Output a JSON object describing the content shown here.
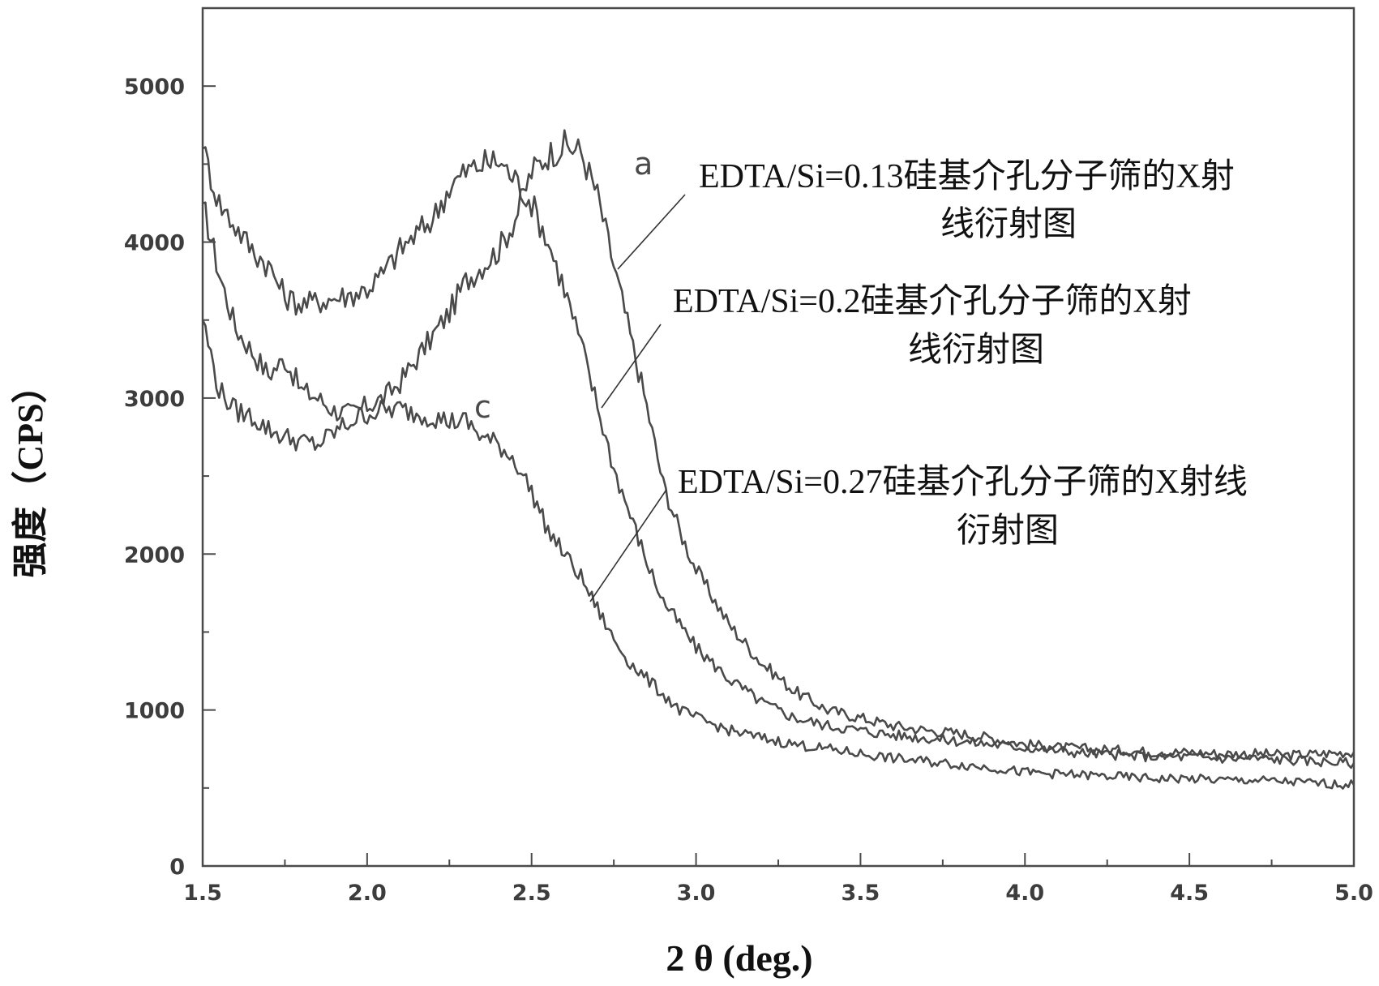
{
  "chart_data": {
    "type": "line",
    "title": "",
    "xlabel": "2 θ (deg.)",
    "ylabel": "强度（CPS）",
    "xlim": [
      1.5,
      5.0
    ],
    "ylim": [
      0,
      5500
    ],
    "x_ticks": [
      "1.5",
      "2.0",
      "2.5",
      "3.0",
      "3.5",
      "4.0",
      "4.5",
      "5.0"
    ],
    "y_ticks": [
      "0",
      "1000",
      "2000",
      "3000",
      "4000",
      "5000"
    ],
    "grid": false,
    "line_color": "#4a4a4a",
    "series": [
      {
        "label": "a",
        "x": [
          1.5,
          1.55,
          1.6,
          1.65,
          1.7,
          1.75,
          1.8,
          1.85,
          1.9,
          1.95,
          2.0,
          2.05,
          2.1,
          2.15,
          2.2,
          2.25,
          2.3,
          2.35,
          2.4,
          2.45,
          2.5,
          2.55,
          2.6,
          2.65,
          2.7,
          2.75,
          2.8,
          2.85,
          2.9,
          2.95,
          3.0,
          3.1,
          3.2,
          3.3,
          3.4,
          3.5,
          3.6,
          3.7,
          3.8,
          3.9,
          4.0,
          4.1,
          4.2,
          4.3,
          4.4,
          4.5,
          4.6,
          4.7,
          4.8,
          4.9,
          5.0
        ],
        "y": [
          4250,
          3800,
          3450,
          3300,
          3150,
          3250,
          3050,
          3000,
          2920,
          2900,
          2950,
          3000,
          3100,
          3250,
          3400,
          3550,
          3750,
          3850,
          3950,
          4150,
          4450,
          4560,
          4620,
          4580,
          4300,
          3850,
          3400,
          2950,
          2450,
          2150,
          1900,
          1550,
          1300,
          1120,
          1000,
          950,
          900,
          870,
          850,
          820,
          780,
          760,
          750,
          740,
          730,
          730,
          720,
          720,
          710,
          720,
          730
        ]
      },
      {
        "label": "",
        "x": [
          1.5,
          1.55,
          1.6,
          1.65,
          1.7,
          1.75,
          1.8,
          1.85,
          1.9,
          1.95,
          2.0,
          2.05,
          2.1,
          2.15,
          2.2,
          2.25,
          2.3,
          2.35,
          2.4,
          2.45,
          2.5,
          2.55,
          2.6,
          2.65,
          2.7,
          2.75,
          2.8,
          2.85,
          2.9,
          2.95,
          3.0,
          3.1,
          3.2,
          3.3,
          3.4,
          3.5,
          3.6,
          3.7,
          3.8,
          3.9,
          4.0,
          4.1,
          4.2,
          4.3,
          4.4,
          4.5,
          4.6,
          4.7,
          4.8,
          4.9,
          5.0
        ],
        "y": [
          4600,
          4250,
          4100,
          3950,
          3850,
          3650,
          3600,
          3620,
          3640,
          3660,
          3700,
          3800,
          3950,
          4050,
          4150,
          4350,
          4450,
          4500,
          4520,
          4400,
          4250,
          4000,
          3700,
          3350,
          2950,
          2550,
          2250,
          1950,
          1700,
          1550,
          1400,
          1200,
          1050,
          950,
          900,
          870,
          840,
          820,
          800,
          780,
          760,
          740,
          720,
          710,
          700,
          700,
          690,
          690,
          680,
          670,
          660
        ]
      },
      {
        "label": "c",
        "x": [
          1.5,
          1.55,
          1.6,
          1.65,
          1.7,
          1.75,
          1.8,
          1.85,
          1.9,
          1.95,
          2.0,
          2.05,
          2.1,
          2.15,
          2.2,
          2.25,
          2.3,
          2.35,
          2.4,
          2.45,
          2.5,
          2.55,
          2.6,
          2.65,
          2.7,
          2.75,
          2.8,
          2.85,
          2.9,
          2.95,
          3.0,
          3.1,
          3.2,
          3.3,
          3.4,
          3.5,
          3.6,
          3.7,
          3.8,
          3.9,
          4.0,
          4.1,
          4.2,
          4.3,
          4.4,
          4.5,
          4.6,
          4.7,
          4.8,
          4.9,
          5.0
        ],
        "y": [
          3500,
          3050,
          2920,
          2880,
          2800,
          2750,
          2720,
          2700,
          2780,
          2850,
          2900,
          2920,
          2930,
          2900,
          2880,
          2850,
          2850,
          2750,
          2700,
          2600,
          2400,
          2150,
          2000,
          1850,
          1650,
          1450,
          1300,
          1200,
          1100,
          1000,
          950,
          870,
          820,
          780,
          750,
          720,
          690,
          670,
          650,
          630,
          600,
          590,
          580,
          570,
          560,
          560,
          550,
          550,
          540,
          530,
          520
        ]
      }
    ],
    "annotations": [
      {
        "text": [
          "EDTA/Si=0.13硅基介孔分子筛的X射",
          "线衍射图"
        ],
        "x": 3.1,
        "y": 4300,
        "target": [
          2.77,
          3820
        ]
      },
      {
        "text": [
          "EDTA/Si=0.2硅基介孔分子筛的X射",
          "线衍射图"
        ],
        "x": 2.95,
        "y": 3450,
        "target": [
          2.72,
          2930
        ]
      },
      {
        "text": [
          "EDTA/Si=0.27硅基介孔分子筛的X射线",
          "衍射图"
        ],
        "x": 2.9,
        "y": 2520,
        "target": [
          2.67,
          1740
        ]
      }
    ]
  }
}
